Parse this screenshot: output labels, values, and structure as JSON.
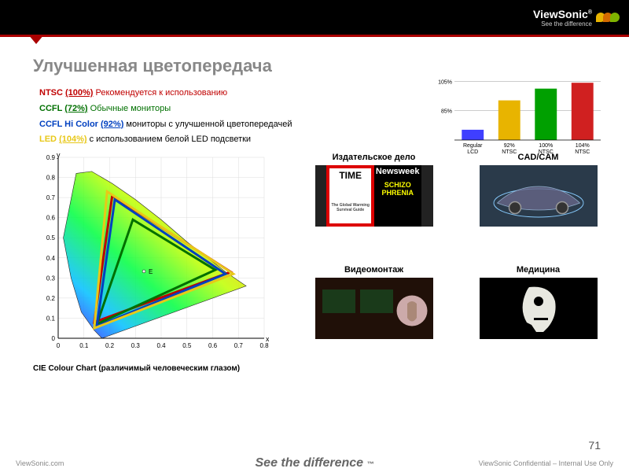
{
  "brand": {
    "name": "ViewSonic",
    "tagline": "See the difference",
    "logo_colors": [
      "#e8b400",
      "#d46a00",
      "#7fb400"
    ]
  },
  "title": "Улучшенная цветопередача",
  "legend": [
    {
      "label": "NTSC",
      "pct": "(100%)",
      "text": " Рекомендуется к использованию",
      "color": "#c00000"
    },
    {
      "label": "CCFL",
      "pct": "(72%)",
      "text": " Обычные мониторы",
      "color": "#007000"
    },
    {
      "label": "CCFL Hi Color",
      "pct": "(92%)",
      "text": " мониторы с улучшенной цветопередачей",
      "color": "#0040c0"
    },
    {
      "label": "LED",
      "pct": "(104%)",
      "text": " с использованием белой LED подсветки",
      "color": "#e8c818"
    }
  ],
  "cie": {
    "caption": "CIE Colour Chart (различимый человеческим глазом)",
    "xlabel": "x",
    "ylabel": "y",
    "xlim": [
      0,
      0.8
    ],
    "ylim": [
      0,
      0.9
    ],
    "xticks": [
      0,
      0.1,
      0.2,
      0.3,
      0.4,
      0.5,
      0.6,
      0.7,
      0.8
    ],
    "yticks": [
      0,
      0.1,
      0.2,
      0.3,
      0.4,
      0.5,
      0.6,
      0.7,
      0.8,
      0.9
    ],
    "whitepoint_label": "E",
    "triangles": {
      "ntsc": {
        "color": "#c00000",
        "width": 3,
        "pts": [
          [
            0.67,
            0.33
          ],
          [
            0.21,
            0.71
          ],
          [
            0.14,
            0.08
          ]
        ]
      },
      "ccfl": {
        "color": "#007000",
        "width": 3,
        "pts": [
          [
            0.61,
            0.34
          ],
          [
            0.29,
            0.59
          ],
          [
            0.15,
            0.07
          ]
        ]
      },
      "hicolor": {
        "color": "#0040c0",
        "width": 3,
        "pts": [
          [
            0.65,
            0.32
          ],
          [
            0.22,
            0.69
          ],
          [
            0.15,
            0.06
          ]
        ]
      },
      "led": {
        "color": "#e8c818",
        "width": 3,
        "pts": [
          [
            0.68,
            0.32
          ],
          [
            0.19,
            0.73
          ],
          [
            0.14,
            0.05
          ]
        ]
      }
    }
  },
  "barchart": {
    "type": "bar",
    "categories": [
      "Regular\nLCD",
      "92%\nNTSC",
      "100%\nNTSC",
      "104%\nNTSC"
    ],
    "values": [
      72,
      92,
      100,
      104
    ],
    "bar_colors": [
      "#3f3fff",
      "#e8b400",
      "#00a000",
      "#d02020"
    ],
    "ylim": [
      65,
      110
    ],
    "yticks": [
      85,
      105
    ],
    "ytick_labels": [
      "85%",
      "105%"
    ],
    "grid_color": "#999",
    "background": "#ffffff",
    "label_fontsize": 7,
    "bar_width": 0.6
  },
  "apps": [
    {
      "title": "Издательское дело",
      "img": "publishing"
    },
    {
      "title": "CAD/CAM",
      "img": "cadcam"
    },
    {
      "title": "Видеомонтаж",
      "img": "video"
    },
    {
      "title": "Медицина",
      "img": "medical"
    }
  ],
  "footer": {
    "left": "ViewSonic.com",
    "center": "See the difference",
    "tm": "™",
    "right": "ViewSonic Confidential – Internal Use Only"
  },
  "page_number": "71"
}
